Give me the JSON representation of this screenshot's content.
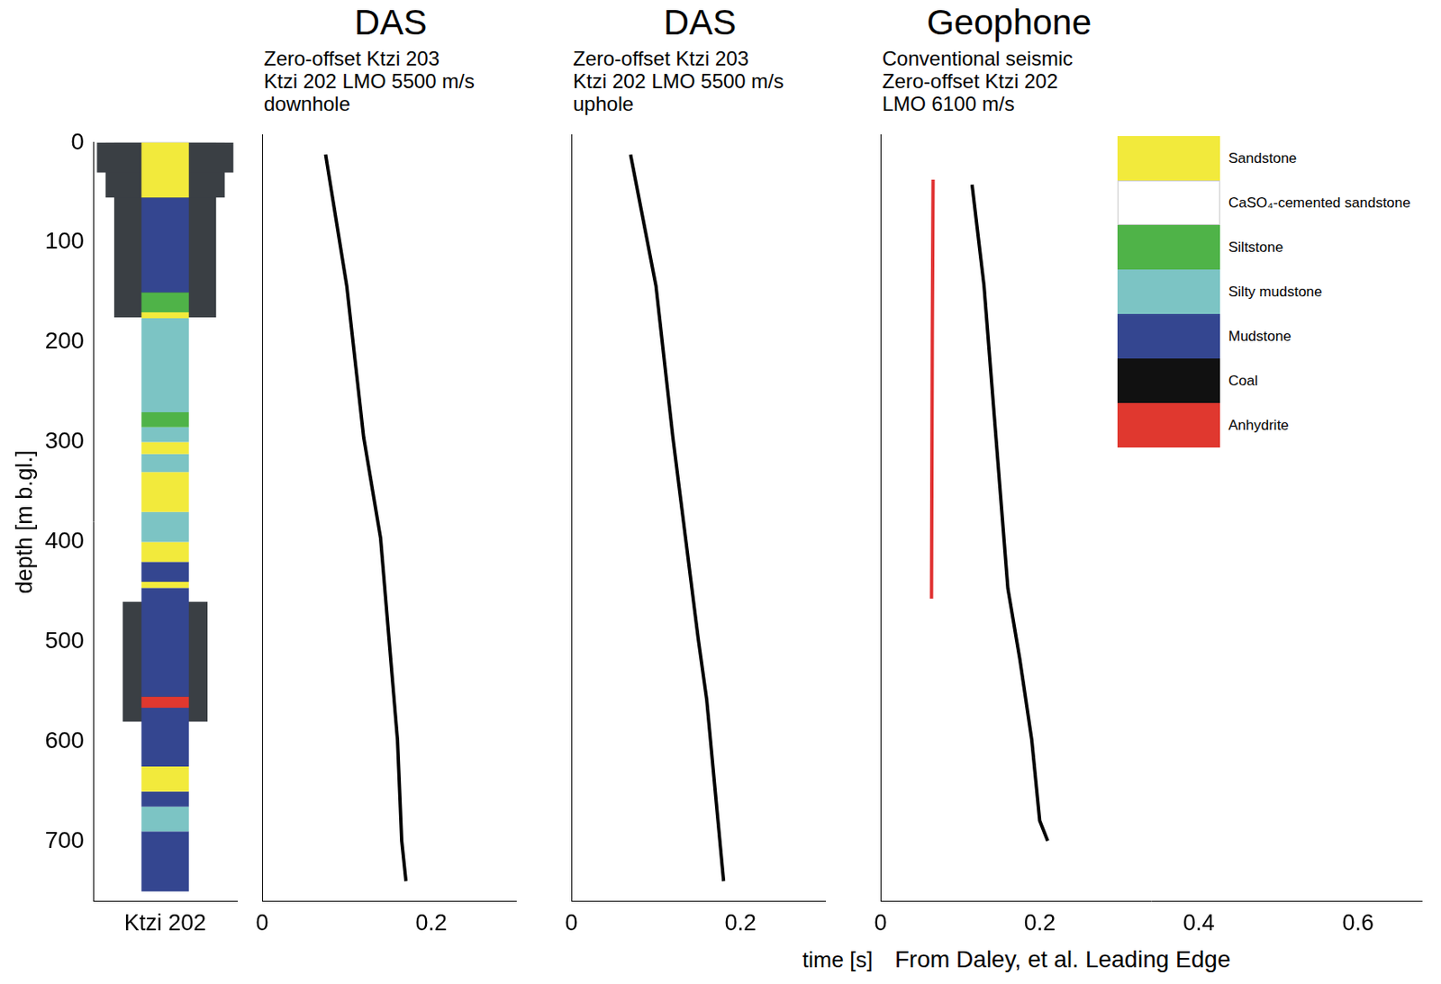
{
  "chart_data": [
    {
      "type": "bar",
      "categories": [
        "Ktzi 202"
      ],
      "ylabel": "depth [m b.gl.]",
      "ylim": [
        0,
        760
      ],
      "yticks": [
        0,
        100,
        200,
        300,
        400,
        500,
        600,
        700
      ],
      "grid": false,
      "casing": {
        "color": "#3a3f44",
        "intervals": [
          [
            0,
            30
          ],
          [
            0,
            55
          ],
          [
            0,
            175
          ],
          [
            460,
            580
          ]
        ]
      },
      "intervals": [
        {
          "lithology": "Sandstone",
          "top": 0,
          "bottom": 55
        },
        {
          "lithology": "Mudstone",
          "top": 55,
          "bottom": 150
        },
        {
          "lithology": "Siltstone",
          "top": 150,
          "bottom": 170
        },
        {
          "lithology": "Sandstone",
          "top": 170,
          "bottom": 176
        },
        {
          "lithology": "Silty mudstone",
          "top": 176,
          "bottom": 270
        },
        {
          "lithology": "Siltstone",
          "top": 270,
          "bottom": 285
        },
        {
          "lithology": "Silty mudstone",
          "top": 285,
          "bottom": 300
        },
        {
          "lithology": "Sandstone",
          "top": 300,
          "bottom": 312
        },
        {
          "lithology": "Silty mudstone",
          "top": 312,
          "bottom": 330
        },
        {
          "lithology": "Sandstone",
          "top": 330,
          "bottom": 370
        },
        {
          "lithology": "Silty mudstone",
          "top": 370,
          "bottom": 400
        },
        {
          "lithology": "Sandstone",
          "top": 400,
          "bottom": 420
        },
        {
          "lithology": "Mudstone",
          "top": 420,
          "bottom": 440
        },
        {
          "lithology": "Sandstone",
          "top": 440,
          "bottom": 446
        },
        {
          "lithology": "Mudstone",
          "top": 446,
          "bottom": 555
        },
        {
          "lithology": "Anhydrite",
          "top": 555,
          "bottom": 566
        },
        {
          "lithology": "Mudstone",
          "top": 566,
          "bottom": 625
        },
        {
          "lithology": "Sandstone",
          "top": 625,
          "bottom": 650
        },
        {
          "lithology": "Mudstone",
          "top": 650,
          "bottom": 665
        },
        {
          "lithology": "Silty mudstone",
          "top": 665,
          "bottom": 690
        },
        {
          "lithology": "Mudstone",
          "top": 690,
          "bottom": 750
        }
      ]
    },
    {
      "type": "line",
      "title": "DAS",
      "subtitle": [
        "Zero-offset Ktzi 203",
        "Ktzi 202 LMO 5500 m/s",
        "downhole"
      ],
      "xlim": [
        0,
        0.3
      ],
      "xticks": [
        0,
        0.2
      ],
      "ylim": [
        0,
        760
      ],
      "tick_labels": "x",
      "grid": false,
      "series": [
        {
          "color": "#000000",
          "x": [
            0.075,
            0.1,
            0.12,
            0.14,
            0.15,
            0.16,
            0.165,
            0.17
          ],
          "values": [
            20,
            150,
            300,
            400,
            500,
            600,
            700,
            740
          ]
        }
      ]
    },
    {
      "type": "line",
      "title": "DAS",
      "subtitle": [
        "Zero-offset Ktzi 203",
        "Ktzi 202 LMO 5500 m/s",
        "uphole"
      ],
      "xlim": [
        0,
        0.3
      ],
      "xticks": [
        0,
        0.2
      ],
      "ylim": [
        0,
        760
      ],
      "tick_labels": "x",
      "grid": false,
      "series": [
        {
          "color": "#000000",
          "x": [
            0.07,
            0.1,
            0.12,
            0.135,
            0.15,
            0.16,
            0.18
          ],
          "values": [
            20,
            150,
            300,
            400,
            500,
            560,
            740
          ]
        }
      ]
    },
    {
      "type": "line",
      "title": "Geophone",
      "subtitle": [
        "Conventional seismic",
        "Zero-offset Ktzi 202",
        "LMO 6100 m/s"
      ],
      "xlim": [
        0,
        0.68
      ],
      "xticks": [
        0,
        0.2,
        0.4,
        0.6
      ],
      "ylim": [
        0,
        760
      ],
      "tick_labels": "x",
      "grid": false,
      "series": [
        {
          "color": "#e03030",
          "x": [
            0.066,
            0.065,
            0.064
          ],
          "values": [
            45,
            200,
            460
          ]
        },
        {
          "color": "#000000",
          "x": [
            0.115,
            0.13,
            0.145,
            0.16,
            0.175,
            0.19,
            0.2,
            0.21
          ],
          "values": [
            50,
            150,
            300,
            450,
            520,
            600,
            680,
            700
          ]
        }
      ],
      "legend": "upper right",
      "legend_items": [
        {
          "name": "Sandstone",
          "color": "#f2ea3c"
        },
        {
          "name": "CaSO₄-cemented sandstone",
          "color": "#ffffff"
        },
        {
          "name": "Siltstone",
          "color": "#4fb348"
        },
        {
          "name": "Silty mudstone",
          "color": "#7cc4c4"
        },
        {
          "name": "Mudstone",
          "color": "#344690"
        },
        {
          "name": "Coal",
          "color": "#111111"
        },
        {
          "name": "Anhydrite",
          "color": "#e0382f"
        }
      ]
    }
  ],
  "xlabel": "time [s]",
  "credit": "From Daley, et al. Leading Edge"
}
